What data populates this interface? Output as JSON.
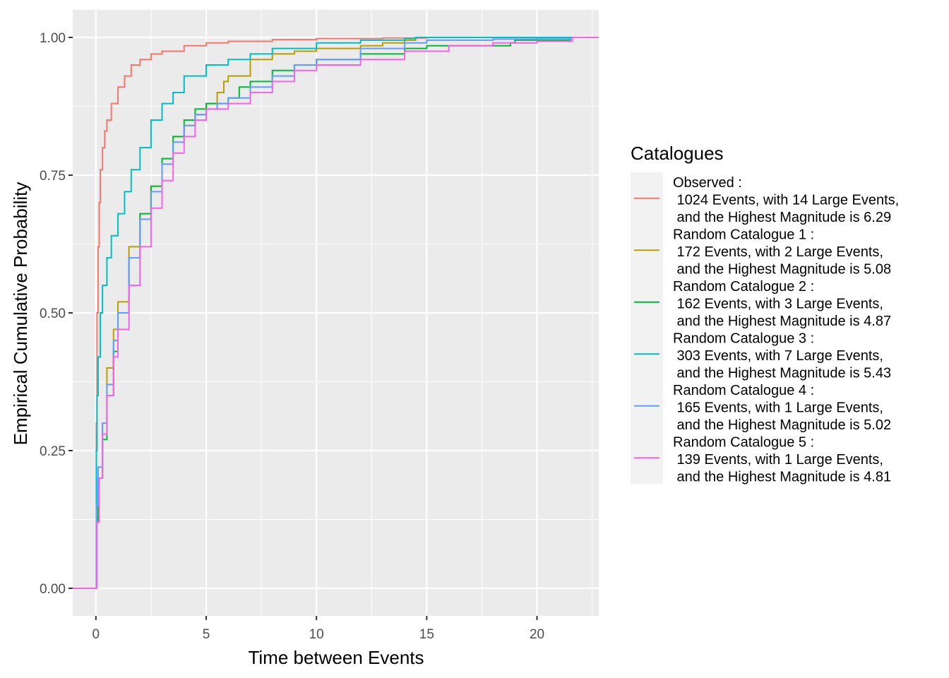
{
  "chart_data": {
    "type": "line",
    "xlabel": "Time between Events",
    "ylabel": "Empirical Cumulative Probability",
    "xlim": [
      -1.05,
      22.8
    ],
    "ylim": [
      -0.05,
      1.05
    ],
    "x_ticks": [
      0,
      5,
      10,
      15,
      20
    ],
    "x_tick_labels": [
      "0",
      "5",
      "10",
      "15",
      "20"
    ],
    "y_ticks": [
      0,
      0.25,
      0.5,
      0.75,
      1.0
    ],
    "y_tick_labels": [
      "0.00",
      "0.25",
      "0.50",
      "0.75",
      "1.00"
    ],
    "grid": true,
    "legend_position": "right",
    "legend": {
      "title": "Catalogues"
    },
    "series": [
      {
        "name": "Observed :\n 1024 Events, with 14 Large Events,\n and the Highest Magnitude is 6.29",
        "color": "#F8766D",
        "x": [
          -1.05,
          0,
          0.02,
          0.05,
          0.1,
          0.15,
          0.2,
          0.3,
          0.4,
          0.5,
          0.7,
          1.0,
          1.3,
          1.6,
          2.0,
          2.5,
          3.0,
          4.0,
          5.0,
          6.0,
          8.0,
          10.0,
          13.0,
          15.0,
          22.8
        ],
        "y": [
          0,
          0,
          0.3,
          0.5,
          0.62,
          0.7,
          0.76,
          0.8,
          0.83,
          0.85,
          0.88,
          0.91,
          0.93,
          0.95,
          0.96,
          0.97,
          0.975,
          0.985,
          0.99,
          0.993,
          0.996,
          0.998,
          0.999,
          1.0,
          1.0
        ]
      },
      {
        "name": "Random Catalogue 1 :\n 172 Events, with 2 Large Events,\n and the Highest Magnitude is 5.08",
        "color": "#B79F00",
        "x": [
          -1.05,
          0,
          0.03,
          0.1,
          0.3,
          0.5,
          0.8,
          1.0,
          1.5,
          2.0,
          2.5,
          3.0,
          3.5,
          4.0,
          4.5,
          5.0,
          5.5,
          5.8,
          6.0,
          7.0,
          8.0,
          9.0,
          10.0,
          12.0,
          13.0,
          14.0,
          14.5,
          22.8
        ],
        "y": [
          0,
          0,
          0.15,
          0.2,
          0.3,
          0.4,
          0.47,
          0.52,
          0.62,
          0.68,
          0.73,
          0.78,
          0.82,
          0.84,
          0.86,
          0.88,
          0.9,
          0.92,
          0.93,
          0.96,
          0.97,
          0.975,
          0.98,
          0.985,
          0.99,
          0.995,
          1.0,
          1.0
        ]
      },
      {
        "name": "Random Catalogue 2 :\n 162 Events, with 3 Large Events,\n and the Highest Magnitude is 4.87",
        "color": "#00BA38",
        "x": [
          -1.05,
          0,
          0.03,
          0.1,
          0.3,
          0.5,
          0.8,
          1.0,
          1.5,
          2.0,
          2.5,
          3.0,
          3.5,
          4.0,
          4.5,
          5.0,
          6.0,
          6.5,
          7.0,
          8.0,
          9.0,
          10.0,
          12.0,
          14.0,
          15.0,
          18.8,
          19.0,
          21.5,
          22.8
        ],
        "y": [
          0,
          0,
          0.12,
          0.2,
          0.27,
          0.35,
          0.43,
          0.5,
          0.6,
          0.68,
          0.73,
          0.78,
          0.82,
          0.85,
          0.87,
          0.88,
          0.89,
          0.91,
          0.92,
          0.94,
          0.95,
          0.96,
          0.97,
          0.98,
          0.985,
          0.99,
          0.995,
          1.0,
          1.0
        ]
      },
      {
        "name": "Random Catalogue 3 :\n 303 Events, with 7 Large Events,\n and the Highest Magnitude is 5.43",
        "color": "#00BFC4",
        "x": [
          -1.05,
          0,
          0.02,
          0.05,
          0.1,
          0.2,
          0.3,
          0.5,
          0.7,
          1.0,
          1.3,
          1.6,
          2.0,
          2.5,
          3.0,
          3.5,
          4.0,
          5.0,
          6.0,
          7.0,
          8.0,
          10.0,
          12.0,
          14.0,
          14.5,
          22.8
        ],
        "y": [
          0,
          0,
          0.25,
          0.35,
          0.42,
          0.5,
          0.55,
          0.6,
          0.64,
          0.68,
          0.72,
          0.76,
          0.8,
          0.85,
          0.88,
          0.9,
          0.93,
          0.95,
          0.96,
          0.97,
          0.98,
          0.99,
          0.995,
          0.998,
          1.0,
          1.0
        ]
      },
      {
        "name": "Random Catalogue 4 :\n 165 Events, with 1 Large Events,\n and the Highest Magnitude is 5.02",
        "color": "#619CFF",
        "x": [
          -1.05,
          0,
          0.03,
          0.1,
          0.3,
          0.5,
          0.8,
          1.0,
          1.5,
          2.0,
          2.5,
          3.0,
          3.5,
          4.0,
          4.5,
          5.0,
          5.5,
          6.0,
          7.0,
          8.0,
          9.0,
          10.0,
          12.0,
          14.0,
          15.0,
          18.0,
          20.0,
          21.6,
          22.8
        ],
        "y": [
          0,
          0,
          0.15,
          0.22,
          0.3,
          0.37,
          0.45,
          0.5,
          0.6,
          0.67,
          0.72,
          0.77,
          0.81,
          0.84,
          0.86,
          0.87,
          0.88,
          0.89,
          0.91,
          0.93,
          0.95,
          0.96,
          0.98,
          0.99,
          0.995,
          0.997,
          0.998,
          1.0,
          1.0
        ]
      },
      {
        "name": "Random Catalogue 5 :\n 139 Events, with 1 Large Events,\n and the Highest Magnitude is 4.81",
        "color": "#F564E3",
        "x": [
          -1.05,
          0,
          0.05,
          0.15,
          0.3,
          0.5,
          0.8,
          1.0,
          1.5,
          2.0,
          2.5,
          3.0,
          3.5,
          4.0,
          4.5,
          5.0,
          6.0,
          7.0,
          8.0,
          9.0,
          10.0,
          12.0,
          14.0,
          16.0,
          18.0,
          20.0,
          21.6,
          22.8
        ],
        "y": [
          0,
          0,
          0.12,
          0.2,
          0.28,
          0.35,
          0.42,
          0.47,
          0.55,
          0.62,
          0.69,
          0.74,
          0.79,
          0.82,
          0.85,
          0.87,
          0.88,
          0.9,
          0.92,
          0.94,
          0.95,
          0.96,
          0.975,
          0.985,
          0.99,
          0.993,
          1.0,
          1.0
        ]
      }
    ]
  }
}
